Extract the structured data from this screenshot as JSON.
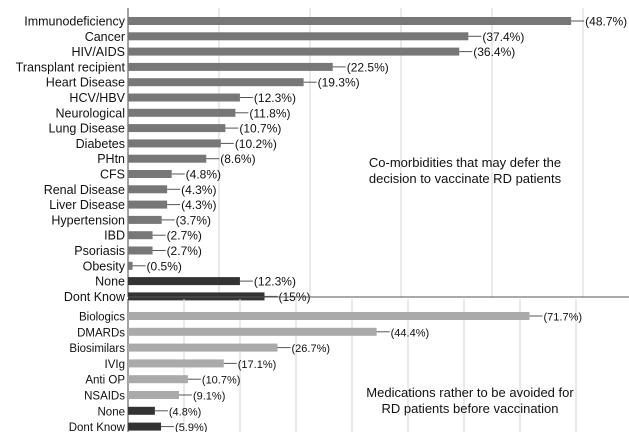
{
  "chart_data": [
    {
      "type": "bar",
      "orientation": "horizontal",
      "categories": [
        "Immunodeficiency",
        "Cancer",
        "HIV/AIDS",
        "Transplant recipient",
        "Heart Disease",
        "HCV/HBV",
        "Neurological",
        "Lung Disease",
        "Diabetes",
        "PHtn",
        "CFS",
        "Renal Disease",
        "Liver Disease",
        "Hypertension",
        "IBD",
        "Psoriasis",
        "Obesity",
        "None",
        "Dont Know"
      ],
      "values": [
        48.7,
        37.4,
        36.4,
        22.5,
        19.3,
        12.3,
        11.8,
        10.7,
        10.2,
        8.6,
        4.8,
        4.3,
        4.3,
        3.7,
        2.7,
        2.7,
        0.5,
        12.3,
        15
      ],
      "value_labels": [
        "(48.7%)",
        "(37.4%)",
        "(36.4%)",
        "(22.5%)",
        "(19.3%)",
        "(12.3%)",
        "(11.8%)",
        "(10.7%)",
        "(10.2%)",
        "(8.6%)",
        "(4.8%)",
        "(4.3%)",
        "(4.3%)",
        "(3.7%)",
        "(2.7%)",
        "(2.7%)",
        "(0.5%)",
        "(12.3%)",
        "(15%)"
      ],
      "colors": [
        "#777777",
        "#777777",
        "#777777",
        "#777777",
        "#777777",
        "#777777",
        "#777777",
        "#777777",
        "#777777",
        "#777777",
        "#777777",
        "#777777",
        "#777777",
        "#777777",
        "#777777",
        "#777777",
        "#777777",
        "#333333",
        "#333333"
      ],
      "annotation": [
        "Co-morbidities  that may defer the",
        "decision to vaccinate RD patients"
      ],
      "xlim": [
        0,
        50
      ],
      "grid": true
    },
    {
      "type": "bar",
      "orientation": "horizontal",
      "categories": [
        "Biologics",
        "DMARDs",
        "Biosimilars",
        "IVIg",
        "Anti OP",
        "NSAIDs",
        "None",
        "Dont Know"
      ],
      "values": [
        71.7,
        44.4,
        26.7,
        17.1,
        10.7,
        9.1,
        4.8,
        5.9
      ],
      "value_labels": [
        "(71.7%)",
        "(44.4%)",
        "(26.7%)",
        "(17.1%)",
        "(10.7%)",
        "(9.1%)",
        "(4.8%)",
        "(5.9%)"
      ],
      "colors": [
        "#aaaaaa",
        "#aaaaaa",
        "#aaaaaa",
        "#aaaaaa",
        "#aaaaaa",
        "#aaaaaa",
        "#333333",
        "#333333"
      ],
      "annotation": [
        "Medications rather to be avoided for",
        "RD patients before vaccination"
      ],
      "xlim": [
        0,
        80
      ],
      "grid": true
    }
  ]
}
